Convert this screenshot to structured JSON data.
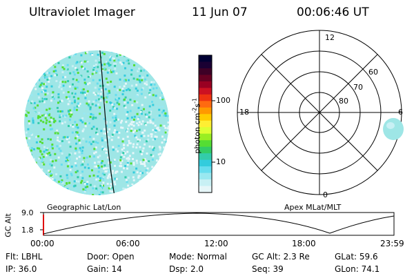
{
  "header": {
    "instrument": "Ultraviolet Imager",
    "date": "11 Jun 07",
    "time": "00:06:46 UT"
  },
  "colorbar": {
    "label": "photon cm",
    "label_sup1": "-2",
    "label_mid": "s",
    "label_sup2": "-1",
    "ticks": [
      "100",
      "10"
    ],
    "colors": [
      "#000033",
      "#1a0033",
      "#3d0026",
      "#660022",
      "#990022",
      "#cc1122",
      "#ee3311",
      "#ff6a10",
      "#ff9900",
      "#ffcc00",
      "#ffee33",
      "#ddff33",
      "#99ee22",
      "#55dd33",
      "#33cc66",
      "#33ccaa",
      "#33ccdd",
      "#66ddee",
      "#99e8f0",
      "#c8f0f4",
      "#e6f6f8"
    ]
  },
  "polar_plot": {
    "mlt_labels": {
      "top": "12",
      "left": "18",
      "right": "6",
      "bottom": "0"
    },
    "lat_labels": [
      "60",
      "70",
      "80"
    ]
  },
  "plot_labels": {
    "left": "Geographic Lat/Lon",
    "right": "Apex MLat/MLT"
  },
  "orbit_plot": {
    "ylabel": "GC Alt",
    "y_ticks": [
      "9.0",
      "1.8"
    ],
    "x_ticks": [
      "00:00",
      "06:00",
      "12:00",
      "18:00",
      "23:59"
    ]
  },
  "info": {
    "row1": [
      {
        "label": "Flt:",
        "value": "LBHL"
      },
      {
        "label": "Door:",
        "value": "Open"
      },
      {
        "label": "Mode:",
        "value": "Normal"
      },
      {
        "label": "GC Alt:",
        "value": "2.3 Re"
      },
      {
        "label": "GLat:",
        "value": "59.6"
      }
    ],
    "row2": [
      {
        "label": "IP:",
        "value": "36.0"
      },
      {
        "label": "Gain:",
        "value": "14"
      },
      {
        "label": "Dsp:",
        "value": "2.0"
      },
      {
        "label": "Seq:",
        "value": "39"
      },
      {
        "label": "GLon:",
        "value": "74.1"
      }
    ]
  }
}
